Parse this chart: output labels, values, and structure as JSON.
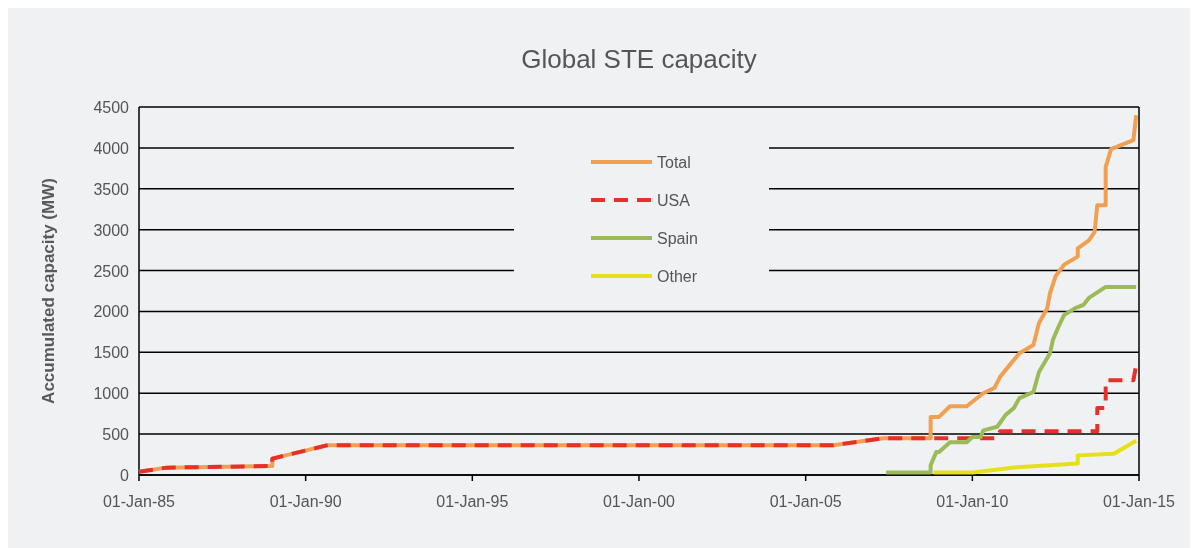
{
  "chart_data": {
    "type": "line",
    "title": "Global STE capacity",
    "ylabel": "Accumulated capacity (MW)",
    "xlim": [
      "1985-01-01",
      "2015-01-01"
    ],
    "xticks": [
      {
        "value": "1985-01-01",
        "label": "01-Jan-85"
      },
      {
        "value": "1990-01-01",
        "label": "01-Jan-90"
      },
      {
        "value": "1995-01-01",
        "label": "01-Jan-95"
      },
      {
        "value": "2000-01-01",
        "label": "01-Jan-00"
      },
      {
        "value": "2005-01-01",
        "label": "01-Jan-05"
      },
      {
        "value": "2010-01-01",
        "label": "01-Jan-10"
      },
      {
        "value": "2015-01-01",
        "label": "01-Jan-15"
      }
    ],
    "ylim": [
      0,
      4500
    ],
    "yticks": [
      0,
      500,
      1000,
      1500,
      2000,
      2500,
      3000,
      3500,
      4000,
      4500
    ],
    "grid": "y",
    "legend": "top",
    "marker": "none",
    "series": [
      {
        "name": "Total",
        "color": "#f0a050",
        "line_style": "solid",
        "x": [
          "1985-01",
          "1985-11",
          "1989-01",
          "1989-01",
          "1990-09",
          "2005-11",
          "2007-05",
          "2008-10",
          "2008-10",
          "2009-01",
          "2009-05",
          "2009-11",
          "2010-01",
          "2010-05",
          "2010-09",
          "2010-11",
          "2011-03",
          "2011-06",
          "2011-11",
          "2012-01",
          "2012-04",
          "2012-05",
          "2012-07",
          "2012-10",
          "2013-03",
          "2013-03",
          "2013-07",
          "2013-09",
          "2013-10",
          "2014-01",
          "2014-01",
          "2014-03",
          "2014-11",
          "2014-12"
        ],
        "values": [
          40,
          90,
          110,
          200,
          365,
          365,
          450,
          450,
          710,
          710,
          840,
          840,
          895,
          1000,
          1065,
          1200,
          1365,
          1490,
          1590,
          1860,
          2040,
          2225,
          2430,
          2570,
          2670,
          2770,
          2870,
          2970,
          3300,
          3300,
          3765,
          3985,
          4095,
          4400
        ]
      },
      {
        "name": "USA",
        "color": "#e8302a",
        "line_style": "dashed",
        "x": [
          "1985-01",
          "1985-11",
          "1989-01",
          "1989-01",
          "1990-09",
          "2005-11",
          "2007-05",
          "2010-10",
          "2010-11",
          "2013-10",
          "2013-10",
          "2014-01",
          "2014-01",
          "2014-11",
          "2014-12"
        ],
        "values": [
          40,
          90,
          110,
          200,
          365,
          365,
          450,
          450,
          535,
          535,
          820,
          820,
          1160,
          1160,
          1345
        ]
      },
      {
        "name": "Spain",
        "color": "#9bbb59",
        "line_style": "solid",
        "x": [
          "2007-06",
          "2008-10",
          "2008-10",
          "2008-12",
          "2009-01",
          "2009-05",
          "2009-11",
          "2010-01",
          "2010-04",
          "2010-05",
          "2010-10",
          "2011-01",
          "2011-04",
          "2011-06",
          "2011-11",
          "2012-01",
          "2012-05",
          "2012-06",
          "2012-08",
          "2012-10",
          "2013-02",
          "2013-05",
          "2013-07",
          "2014-01",
          "2014-12"
        ],
        "values": [
          30,
          30,
          120,
          280,
          280,
          400,
          400,
          465,
          465,
          545,
          590,
          735,
          820,
          940,
          1015,
          1260,
          1490,
          1650,
          1810,
          1955,
          2040,
          2080,
          2165,
          2300,
          2300
        ]
      },
      {
        "name": "Other",
        "color": "#e6e01a",
        "line_style": "solid",
        "x": [
          "2008-11",
          "2010-01",
          "2011-05",
          "2013-03",
          "2013-03",
          "2014-04",
          "2014-12"
        ],
        "values": [
          30,
          30,
          95,
          140,
          240,
          260,
          420
        ]
      }
    ]
  }
}
